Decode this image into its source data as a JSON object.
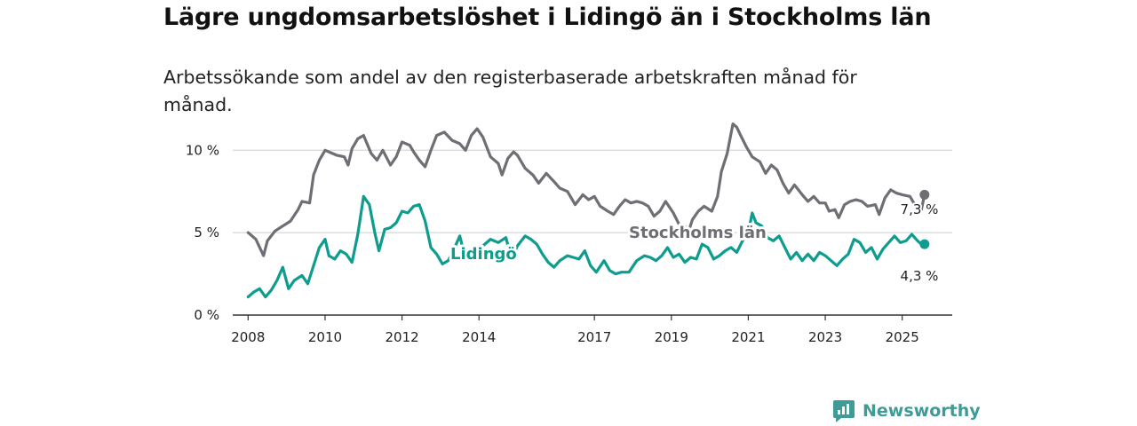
{
  "title": "Lägre ungdomsarbetslöshet i Lidingö än i Stockholms län",
  "subtitle": "Arbetssökande som andel av den registerbaserade arbetskraften månad för månad.",
  "brand": "Newsworthy",
  "chart_data": {
    "type": "line",
    "y_ticks": [
      {
        "value": 0,
        "label": "0 %"
      },
      {
        "value": 5,
        "label": "5 %"
      },
      {
        "value": 10,
        "label": "10 %"
      }
    ],
    "x_ticks": [
      {
        "value": 2008,
        "label": "2008"
      },
      {
        "value": 2010,
        "label": "2010"
      },
      {
        "value": 2012,
        "label": "2012"
      },
      {
        "value": 2014,
        "label": "2014"
      },
      {
        "value": 2017,
        "label": "2017"
      },
      {
        "value": 2019,
        "label": "2019"
      },
      {
        "value": 2021,
        "label": "2021"
      },
      {
        "value": 2023,
        "label": "2023"
      },
      {
        "value": 2025,
        "label": "2025"
      }
    ],
    "xlim": [
      2007.6,
      2026.3
    ],
    "ylim": [
      0,
      10.5
    ],
    "grid": true,
    "series": [
      {
        "name": "Stockholms län",
        "color": "#6e6e75",
        "end_label": "7,3 %",
        "points": [
          [
            2008.0,
            5.0
          ],
          [
            2008.2,
            4.6
          ],
          [
            2008.4,
            3.6
          ],
          [
            2008.5,
            4.5
          ],
          [
            2008.7,
            5.1
          ],
          [
            2008.9,
            5.4
          ],
          [
            2009.1,
            5.7
          ],
          [
            2009.3,
            6.4
          ],
          [
            2009.4,
            6.9
          ],
          [
            2009.6,
            6.8
          ],
          [
            2009.7,
            8.5
          ],
          [
            2009.85,
            9.4
          ],
          [
            2010.0,
            10.0
          ],
          [
            2010.2,
            9.8
          ],
          [
            2010.3,
            9.7
          ],
          [
            2010.5,
            9.6
          ],
          [
            2010.6,
            9.1
          ],
          [
            2010.7,
            10.1
          ],
          [
            2010.85,
            10.7
          ],
          [
            2011.0,
            10.9
          ],
          [
            2011.2,
            9.8
          ],
          [
            2011.35,
            9.4
          ],
          [
            2011.5,
            10.0
          ],
          [
            2011.7,
            9.1
          ],
          [
            2011.85,
            9.6
          ],
          [
            2012.0,
            10.5
          ],
          [
            2012.2,
            10.3
          ],
          [
            2012.3,
            9.9
          ],
          [
            2012.45,
            9.4
          ],
          [
            2012.6,
            9.0
          ],
          [
            2012.75,
            10.0
          ],
          [
            2012.9,
            10.9
          ],
          [
            2013.1,
            11.1
          ],
          [
            2013.3,
            10.6
          ],
          [
            2013.5,
            10.4
          ],
          [
            2013.65,
            10.0
          ],
          [
            2013.8,
            10.9
          ],
          [
            2013.95,
            11.3
          ],
          [
            2014.1,
            10.8
          ],
          [
            2014.3,
            9.6
          ],
          [
            2014.5,
            9.2
          ],
          [
            2014.6,
            8.5
          ],
          [
            2014.75,
            9.5
          ],
          [
            2014.9,
            9.9
          ],
          [
            2015.0,
            9.7
          ],
          [
            2015.2,
            8.9
          ],
          [
            2015.4,
            8.5
          ],
          [
            2015.55,
            8.0
          ],
          [
            2015.75,
            8.6
          ],
          [
            2015.95,
            8.1
          ],
          [
            2016.1,
            7.7
          ],
          [
            2016.3,
            7.5
          ],
          [
            2016.5,
            6.7
          ],
          [
            2016.7,
            7.3
          ],
          [
            2016.85,
            7.0
          ],
          [
            2017.0,
            7.2
          ],
          [
            2017.15,
            6.6
          ],
          [
            2017.35,
            6.3
          ],
          [
            2017.5,
            6.1
          ],
          [
            2017.65,
            6.6
          ],
          [
            2017.8,
            7.0
          ],
          [
            2017.95,
            6.8
          ],
          [
            2018.1,
            6.9
          ],
          [
            2018.25,
            6.8
          ],
          [
            2018.4,
            6.6
          ],
          [
            2018.55,
            6.0
          ],
          [
            2018.7,
            6.3
          ],
          [
            2018.85,
            6.9
          ],
          [
            2019.05,
            6.2
          ],
          [
            2019.2,
            5.5
          ],
          [
            2019.35,
            5.4
          ],
          [
            2019.45,
            5.1
          ],
          [
            2019.55,
            5.8
          ],
          [
            2019.7,
            6.3
          ],
          [
            2019.85,
            6.6
          ],
          [
            2020.05,
            6.3
          ],
          [
            2020.2,
            7.2
          ],
          [
            2020.3,
            8.7
          ],
          [
            2020.45,
            9.8
          ],
          [
            2020.6,
            11.6
          ],
          [
            2020.7,
            11.4
          ],
          [
            2020.8,
            10.9
          ],
          [
            2020.95,
            10.2
          ],
          [
            2021.1,
            9.6
          ],
          [
            2021.3,
            9.3
          ],
          [
            2021.45,
            8.6
          ],
          [
            2021.6,
            9.1
          ],
          [
            2021.75,
            8.8
          ],
          [
            2021.9,
            8.0
          ],
          [
            2022.05,
            7.4
          ],
          [
            2022.2,
            7.9
          ],
          [
            2022.4,
            7.3
          ],
          [
            2022.55,
            6.9
          ],
          [
            2022.7,
            7.2
          ],
          [
            2022.85,
            6.8
          ],
          [
            2023.0,
            6.8
          ],
          [
            2023.1,
            6.3
          ],
          [
            2023.25,
            6.4
          ],
          [
            2023.35,
            5.9
          ],
          [
            2023.5,
            6.7
          ],
          [
            2023.65,
            6.9
          ],
          [
            2023.8,
            7.0
          ],
          [
            2023.95,
            6.9
          ],
          [
            2024.1,
            6.6
          ],
          [
            2024.3,
            6.7
          ],
          [
            2024.4,
            6.1
          ],
          [
            2024.55,
            7.1
          ],
          [
            2024.7,
            7.6
          ],
          [
            2024.85,
            7.4
          ],
          [
            2025.0,
            7.3
          ],
          [
            2025.2,
            7.2
          ],
          [
            2025.35,
            6.6
          ],
          [
            2025.5,
            6.4
          ],
          [
            2025.58,
            7.3
          ]
        ]
      },
      {
        "name": "Lidingö",
        "color": "#0e9c8f",
        "end_label": "4,3 %",
        "points": [
          [
            2008.0,
            1.1
          ],
          [
            2008.15,
            1.4
          ],
          [
            2008.3,
            1.6
          ],
          [
            2008.45,
            1.1
          ],
          [
            2008.6,
            1.5
          ],
          [
            2008.75,
            2.1
          ],
          [
            2008.9,
            2.9
          ],
          [
            2009.05,
            1.6
          ],
          [
            2009.2,
            2.1
          ],
          [
            2009.4,
            2.4
          ],
          [
            2009.55,
            1.9
          ],
          [
            2009.7,
            3.0
          ],
          [
            2009.85,
            4.1
          ],
          [
            2010.0,
            4.6
          ],
          [
            2010.1,
            3.6
          ],
          [
            2010.25,
            3.4
          ],
          [
            2010.4,
            3.9
          ],
          [
            2010.55,
            3.7
          ],
          [
            2010.7,
            3.2
          ],
          [
            2010.85,
            4.9
          ],
          [
            2011.0,
            7.2
          ],
          [
            2011.15,
            6.7
          ],
          [
            2011.3,
            4.9
          ],
          [
            2011.4,
            3.9
          ],
          [
            2011.55,
            5.2
          ],
          [
            2011.7,
            5.3
          ],
          [
            2011.85,
            5.6
          ],
          [
            2012.0,
            6.3
          ],
          [
            2012.15,
            6.2
          ],
          [
            2012.3,
            6.6
          ],
          [
            2012.45,
            6.7
          ],
          [
            2012.6,
            5.7
          ],
          [
            2012.75,
            4.1
          ],
          [
            2012.9,
            3.7
          ],
          [
            2013.05,
            3.1
          ],
          [
            2013.2,
            3.3
          ],
          [
            2013.35,
            4.0
          ],
          [
            2013.5,
            4.8
          ],
          [
            2013.65,
            3.4
          ],
          [
            2013.8,
            3.9
          ],
          [
            2013.95,
            3.9
          ],
          [
            2014.1,
            4.2
          ],
          [
            2014.3,
            4.6
          ],
          [
            2014.5,
            4.4
          ],
          [
            2014.7,
            4.7
          ],
          [
            2014.85,
            3.4
          ],
          [
            2015.0,
            4.2
          ],
          [
            2015.2,
            4.8
          ],
          [
            2015.35,
            4.6
          ],
          [
            2015.5,
            4.3
          ],
          [
            2015.65,
            3.7
          ],
          [
            2015.8,
            3.2
          ],
          [
            2015.95,
            2.9
          ],
          [
            2016.1,
            3.3
          ],
          [
            2016.3,
            3.6
          ],
          [
            2016.45,
            3.5
          ],
          [
            2016.6,
            3.4
          ],
          [
            2016.75,
            3.9
          ],
          [
            2016.9,
            3.0
          ],
          [
            2017.05,
            2.6
          ],
          [
            2017.25,
            3.3
          ],
          [
            2017.4,
            2.7
          ],
          [
            2017.55,
            2.5
          ],
          [
            2017.7,
            2.6
          ],
          [
            2017.9,
            2.6
          ],
          [
            2018.1,
            3.3
          ],
          [
            2018.3,
            3.6
          ],
          [
            2018.45,
            3.5
          ],
          [
            2018.6,
            3.3
          ],
          [
            2018.75,
            3.6
          ],
          [
            2018.9,
            4.1
          ],
          [
            2019.05,
            3.5
          ],
          [
            2019.2,
            3.7
          ],
          [
            2019.35,
            3.2
          ],
          [
            2019.5,
            3.5
          ],
          [
            2019.65,
            3.4
          ],
          [
            2019.8,
            4.3
          ],
          [
            2019.95,
            4.1
          ],
          [
            2020.1,
            3.4
          ],
          [
            2020.25,
            3.6
          ],
          [
            2020.4,
            3.9
          ],
          [
            2020.55,
            4.1
          ],
          [
            2020.7,
            3.8
          ],
          [
            2020.85,
            4.5
          ],
          [
            2021.0,
            5.0
          ],
          [
            2021.1,
            6.2
          ],
          [
            2021.2,
            5.6
          ],
          [
            2021.35,
            5.4
          ],
          [
            2021.5,
            4.7
          ],
          [
            2021.65,
            4.5
          ],
          [
            2021.8,
            4.8
          ],
          [
            2021.95,
            4.1
          ],
          [
            2022.1,
            3.4
          ],
          [
            2022.25,
            3.8
          ],
          [
            2022.4,
            3.3
          ],
          [
            2022.55,
            3.7
          ],
          [
            2022.7,
            3.3
          ],
          [
            2022.85,
            3.8
          ],
          [
            2023.0,
            3.6
          ],
          [
            2023.15,
            3.3
          ],
          [
            2023.3,
            3.0
          ],
          [
            2023.45,
            3.4
          ],
          [
            2023.6,
            3.7
          ],
          [
            2023.75,
            4.6
          ],
          [
            2023.9,
            4.4
          ],
          [
            2024.05,
            3.8
          ],
          [
            2024.2,
            4.1
          ],
          [
            2024.35,
            3.4
          ],
          [
            2024.5,
            4.0
          ],
          [
            2024.65,
            4.4
          ],
          [
            2024.8,
            4.8
          ],
          [
            2024.95,
            4.4
          ],
          [
            2025.1,
            4.5
          ],
          [
            2025.25,
            4.9
          ],
          [
            2025.4,
            4.5
          ],
          [
            2025.5,
            4.3
          ],
          [
            2025.58,
            4.3
          ]
        ]
      }
    ]
  }
}
